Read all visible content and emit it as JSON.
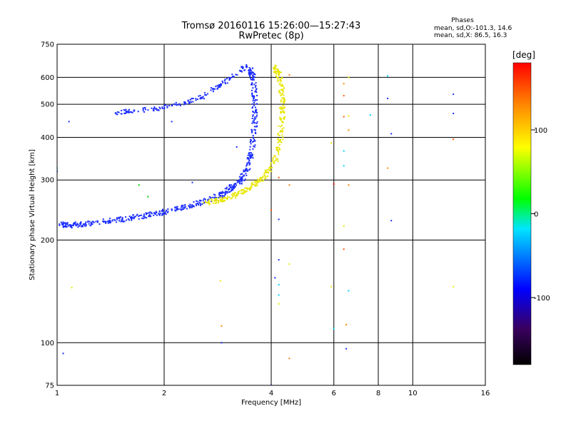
{
  "header": {
    "title_line1": "Tromsø 20160116 15:26:00—15:27:43",
    "title_line2": "RwPretec (8p)",
    "stats_title": "Phases",
    "stats_line1": "mean, sd,O:-101.3, 14.6",
    "stats_line2": "mean, sd,X:  86.5, 16.3"
  },
  "chart_data": {
    "type": "scatter",
    "title": "Tromsø 20160116 15:26:00—15:27:43",
    "subtitle": "RwPretec (8p)",
    "xlabel": "Frequency [MHz]",
    "ylabel": "Stationary phase Virtual Height [km]",
    "x_scale": "log",
    "y_scale": "log",
    "xlim": [
      1,
      16
    ],
    "ylim": [
      75,
      750
    ],
    "x_ticks": [
      1,
      2,
      4,
      6,
      8,
      10,
      16
    ],
    "x_tick_labels": [
      "1",
      "2",
      "4",
      "6",
      "8",
      "10",
      "16"
    ],
    "y_ticks": [
      75,
      100,
      200,
      300,
      400,
      500,
      600,
      750
    ],
    "y_tick_labels": [
      "75",
      "100",
      "200",
      "300",
      "400",
      "500",
      "600",
      "750"
    ],
    "grid": true,
    "colorbar": {
      "label": "[deg]",
      "range": [
        -180,
        180
      ],
      "ticks": [
        -100,
        0,
        100
      ],
      "tick_labels": [
        "-100",
        "0",
        "100"
      ],
      "colors": [
        "#000000",
        "#3a0060",
        "#0000ff",
        "#00e5ff",
        "#00ff00",
        "#ffff00",
        "#ff8800",
        "#ff0000"
      ]
    },
    "series": [
      {
        "name": "O",
        "color": "#1a2cff",
        "trace": [
          [
            1.02,
            222
          ],
          [
            1.1,
            221
          ],
          [
            1.2,
            223
          ],
          [
            1.4,
            228
          ],
          [
            1.6,
            232
          ],
          [
            1.8,
            237
          ],
          [
            2.0,
            242
          ],
          [
            2.3,
            250
          ],
          [
            2.6,
            260
          ],
          [
            2.9,
            272
          ],
          [
            3.1,
            285
          ],
          [
            3.3,
            300
          ],
          [
            3.45,
            330
          ],
          [
            3.55,
            380
          ],
          [
            3.6,
            450
          ],
          [
            3.6,
            520
          ],
          [
            3.55,
            600
          ],
          [
            3.5,
            640
          ]
        ],
        "upper_trace": [
          [
            3.4,
            645
          ],
          [
            3.1,
            600
          ],
          [
            2.8,
            560
          ],
          [
            2.5,
            520
          ],
          [
            2.2,
            500
          ],
          [
            1.9,
            485
          ],
          [
            1.6,
            478
          ],
          [
            1.45,
            472
          ]
        ]
      },
      {
        "name": "X",
        "color": "#e8e600",
        "trace": [
          [
            2.6,
            257
          ],
          [
            2.9,
            262
          ],
          [
            3.2,
            272
          ],
          [
            3.5,
            285
          ],
          [
            3.8,
            305
          ],
          [
            4.1,
            340
          ],
          [
            4.25,
            400
          ],
          [
            4.3,
            470
          ],
          [
            4.3,
            540
          ],
          [
            4.2,
            610
          ],
          [
            4.1,
            640
          ]
        ]
      }
    ],
    "scatter_points": [
      {
        "x": 1.04,
        "y": 93,
        "color": "#1a2cff"
      },
      {
        "x": 1.1,
        "y": 145,
        "color": "#e8e600"
      },
      {
        "x": 1.08,
        "y": 445,
        "color": "#1a2cff"
      },
      {
        "x": 2.88,
        "y": 152,
        "color": "#e8e600"
      },
      {
        "x": 2.9,
        "y": 112,
        "color": "#ff8800"
      },
      {
        "x": 2.9,
        "y": 100,
        "color": "#1a2cff"
      },
      {
        "x": 4.0,
        "y": 75,
        "color": "#1a2cff"
      },
      {
        "x": 4.0,
        "y": 245,
        "color": "#ff5500"
      },
      {
        "x": 4.1,
        "y": 155,
        "color": "#1a2cff"
      },
      {
        "x": 4.2,
        "y": 230,
        "color": "#1a2cff"
      },
      {
        "x": 4.2,
        "y": 175,
        "color": "#1a2cff"
      },
      {
        "x": 4.2,
        "y": 148,
        "color": "#00d0ff"
      },
      {
        "x": 4.2,
        "y": 138,
        "color": "#00d0ff"
      },
      {
        "x": 4.2,
        "y": 130,
        "color": "#e8e600"
      },
      {
        "x": 4.2,
        "y": 305,
        "color": "#ff5500"
      },
      {
        "x": 4.5,
        "y": 90,
        "color": "#ff8800"
      },
      {
        "x": 4.5,
        "y": 610,
        "color": "#ff8800"
      },
      {
        "x": 4.5,
        "y": 290,
        "color": "#ff8800"
      },
      {
        "x": 4.5,
        "y": 170,
        "color": "#e8e600"
      },
      {
        "x": 5.9,
        "y": 385,
        "color": "#e8e600"
      },
      {
        "x": 5.9,
        "y": 146,
        "color": "#e8e600"
      },
      {
        "x": 6.0,
        "y": 110,
        "color": "#00d0ff"
      },
      {
        "x": 6.0,
        "y": 292,
        "color": "#ff0000"
      },
      {
        "x": 6.4,
        "y": 575,
        "color": "#ff8800"
      },
      {
        "x": 6.4,
        "y": 530,
        "color": "#ff5500"
      },
      {
        "x": 6.4,
        "y": 460,
        "color": "#ff5500"
      },
      {
        "x": 6.4,
        "y": 365,
        "color": "#00d0ff"
      },
      {
        "x": 6.4,
        "y": 330,
        "color": "#00d0ff"
      },
      {
        "x": 6.4,
        "y": 220,
        "color": "#e8e600"
      },
      {
        "x": 6.4,
        "y": 188,
        "color": "#ff5500"
      },
      {
        "x": 6.5,
        "y": 96,
        "color": "#1a2cff"
      },
      {
        "x": 6.5,
        "y": 113,
        "color": "#ff8800"
      },
      {
        "x": 6.6,
        "y": 600,
        "color": "#e8e600"
      },
      {
        "x": 6.6,
        "y": 462,
        "color": "#e8e600"
      },
      {
        "x": 6.6,
        "y": 420,
        "color": "#ff8800"
      },
      {
        "x": 6.6,
        "y": 290,
        "color": "#ff8800"
      },
      {
        "x": 6.6,
        "y": 142,
        "color": "#00d0ff"
      },
      {
        "x": 7.6,
        "y": 465,
        "color": "#00d0ff"
      },
      {
        "x": 8.5,
        "y": 605,
        "color": "#00d0ff"
      },
      {
        "x": 8.5,
        "y": 520,
        "color": "#1a2cff"
      },
      {
        "x": 8.5,
        "y": 325,
        "color": "#ff8800"
      },
      {
        "x": 8.7,
        "y": 410,
        "color": "#1a2cff"
      },
      {
        "x": 8.7,
        "y": 228,
        "color": "#1a2cff"
      },
      {
        "x": 13.0,
        "y": 535,
        "color": "#1a2cff"
      },
      {
        "x": 13.0,
        "y": 470,
        "color": "#1a2cff"
      },
      {
        "x": 13.0,
        "y": 395,
        "color": "#ff5500"
      },
      {
        "x": 13.0,
        "y": 146,
        "color": "#e8e600"
      },
      {
        "x": 2.1,
        "y": 445,
        "color": "#1a2cff"
      },
      {
        "x": 2.4,
        "y": 295,
        "color": "#1a2cff"
      },
      {
        "x": 1.7,
        "y": 290,
        "color": "#00cc00"
      },
      {
        "x": 1.8,
        "y": 268,
        "color": "#00cc00"
      },
      {
        "x": 1.0,
        "y": 325,
        "color": "#00d0ff"
      },
      {
        "x": 1.0,
        "y": 318,
        "color": "#1a2cff"
      },
      {
        "x": 3.2,
        "y": 375,
        "color": "#1a2cff"
      }
    ]
  }
}
